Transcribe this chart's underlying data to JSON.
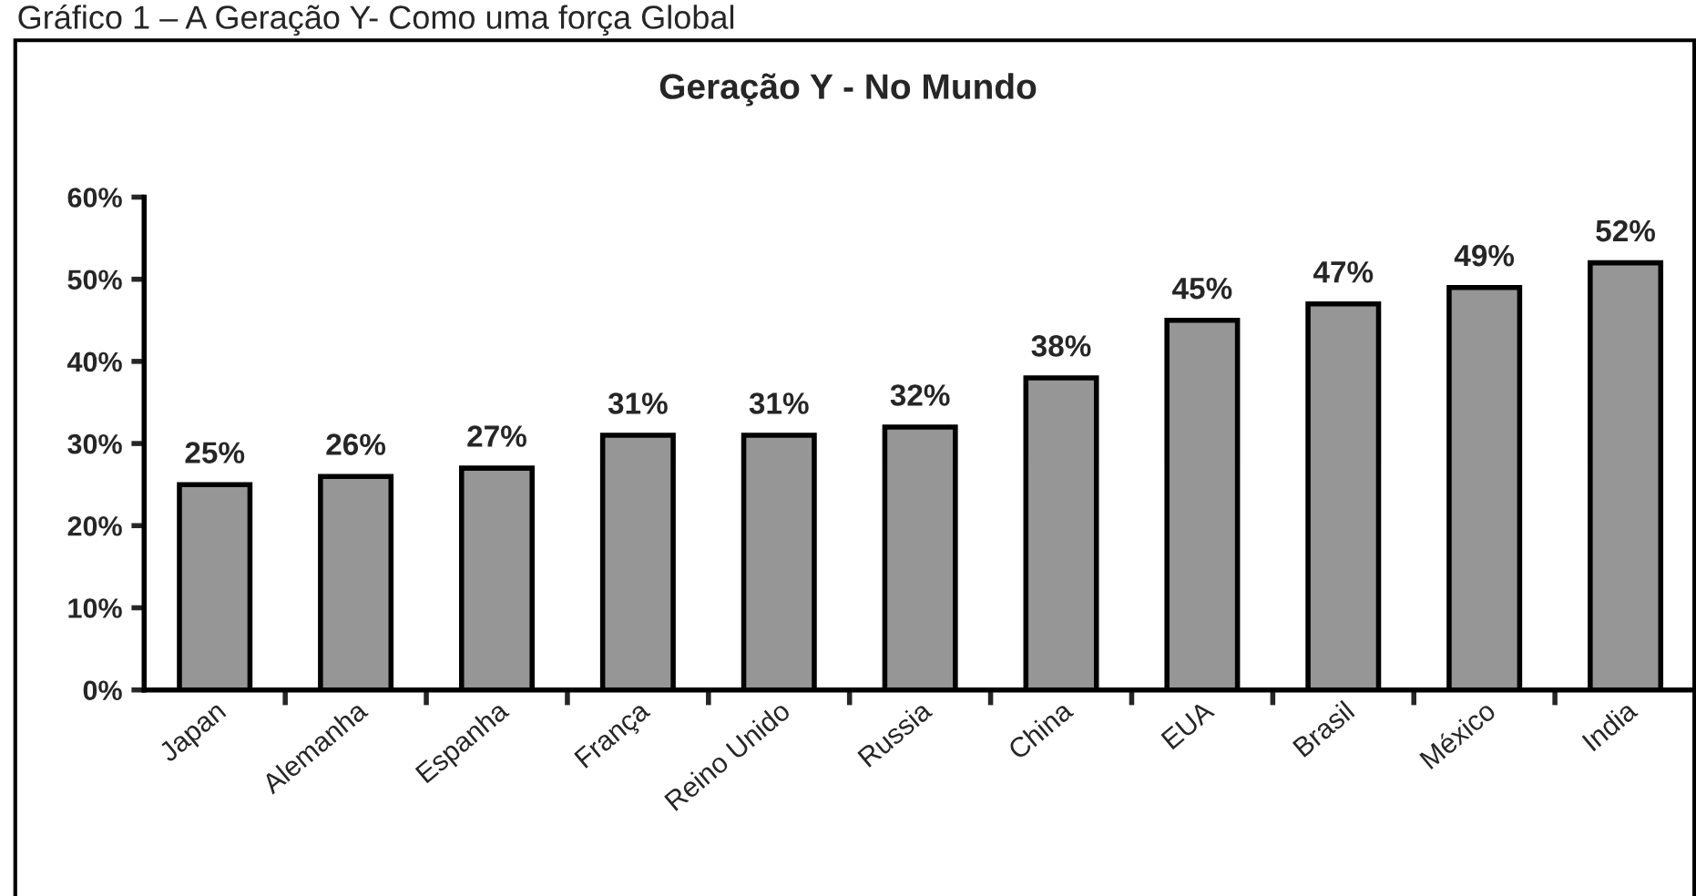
{
  "chart_data": {
    "type": "bar",
    "title": "Geração Y - No Mundo",
    "annotations": [
      "Gráfico 1 – A Geração Y- Como uma força Global"
    ],
    "categories": [
      "Japan",
      "Alemanha",
      "Espanha",
      "França",
      "Reino Unido",
      "Russia",
      "China",
      "EUA",
      "Brasil",
      "México",
      "India"
    ],
    "values": [
      25,
      26,
      27,
      31,
      31,
      32,
      38,
      45,
      47,
      49,
      52
    ],
    "value_labels": [
      "25%",
      "26%",
      "27%",
      "31%",
      "31%",
      "32%",
      "38%",
      "45%",
      "47%",
      "49%",
      "52%"
    ],
    "color": "#969696",
    "ylim": [
      0,
      60
    ],
    "yticks": [
      {
        "value": 0,
        "label": "0%"
      },
      {
        "value": 10,
        "label": "10%"
      },
      {
        "value": 20,
        "label": "20%"
      },
      {
        "value": 30,
        "label": "30%"
      },
      {
        "value": 40,
        "label": "40%"
      },
      {
        "value": 50,
        "label": "50%"
      },
      {
        "value": 60,
        "label": "60%"
      }
    ],
    "grid": false,
    "legend": false
  }
}
